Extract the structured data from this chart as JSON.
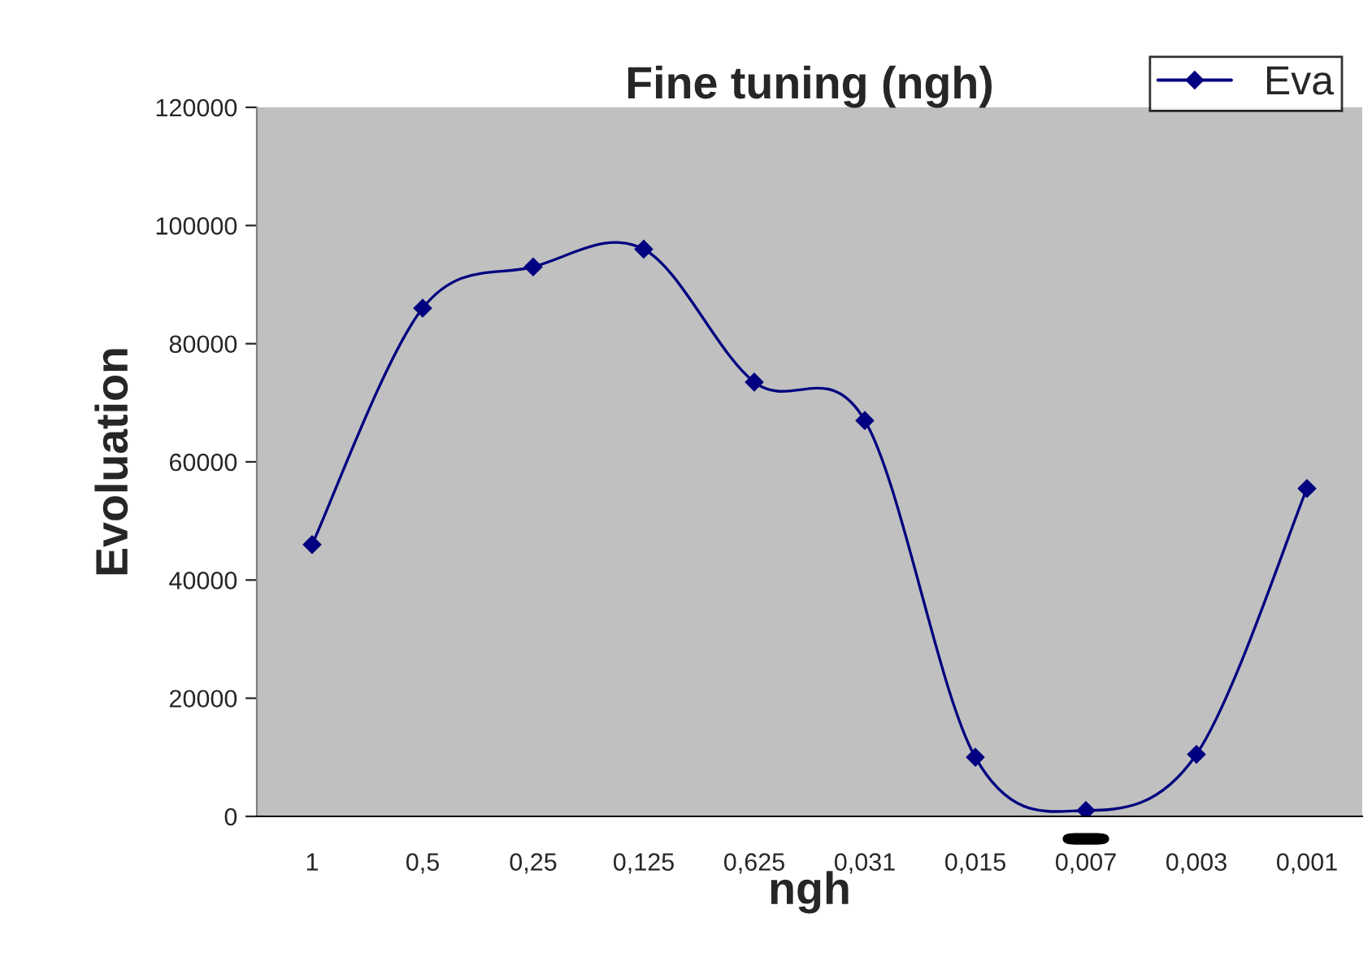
{
  "chart_data": {
    "type": "line",
    "title": "Fine tuning (ngh)",
    "xlabel": "ngh",
    "ylabel": "Evoluation",
    "categories": [
      "1",
      "0,5",
      "0,25",
      "0,125",
      "0,625",
      "0,031",
      "0,015",
      "0,007",
      "0,003",
      "0,001"
    ],
    "series": [
      {
        "name": "Eva",
        "color": "#000080",
        "values": [
          46000,
          86000,
          93000,
          96000,
          73500,
          67000,
          10000,
          1000,
          10500,
          55500
        ]
      }
    ],
    "ylim": [
      0,
      120000
    ],
    "yticks": [
      0,
      20000,
      40000,
      60000,
      80000,
      100000,
      120000
    ],
    "grid": false,
    "legend": "top right",
    "marker": "diamond",
    "line_style": "solid"
  }
}
